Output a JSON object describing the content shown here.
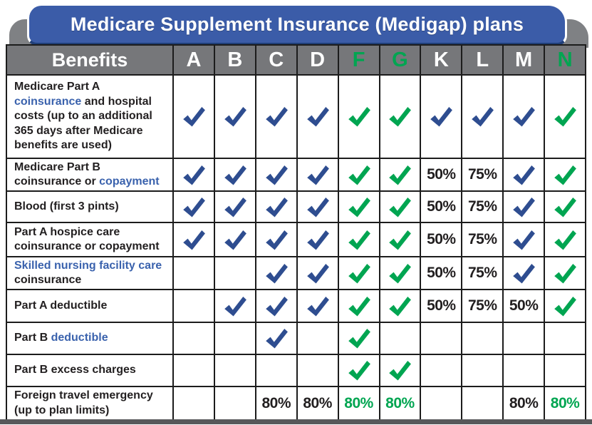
{
  "banner": {
    "title": "Medicare Supplement Insurance (Medigap) plans"
  },
  "colors": {
    "banner_blue": "#3b5ca8",
    "header_gray": "#76777a",
    "tab_gray": "#7f8184",
    "check_blue": "#2e4d90",
    "check_green": "#00a551",
    "label_blue": "#3a62ad",
    "text_black": "#221f20"
  },
  "table": {
    "benefits_header": "Benefits",
    "plan_columns": [
      {
        "label": "A",
        "style": "white"
      },
      {
        "label": "B",
        "style": "white"
      },
      {
        "label": "C",
        "style": "white"
      },
      {
        "label": "D",
        "style": "white"
      },
      {
        "label": "F",
        "style": "green"
      },
      {
        "label": "G",
        "style": "green"
      },
      {
        "label": "K",
        "style": "white"
      },
      {
        "label": "L",
        "style": "white"
      },
      {
        "label": "M",
        "style": "white"
      },
      {
        "label": "N",
        "style": "green"
      }
    ],
    "rows": [
      {
        "label_segments": [
          {
            "text": "Medicare Part A ",
            "color": "black"
          },
          {
            "text": "coinsurance",
            "color": "blue"
          },
          {
            "text": " and hospital costs (up to an additional 365 days after Medicare benefits are used)",
            "color": "black"
          }
        ],
        "cells": [
          {
            "check": "blue"
          },
          {
            "check": "blue"
          },
          {
            "check": "blue"
          },
          {
            "check": "blue"
          },
          {
            "check": "green"
          },
          {
            "check": "green"
          },
          {
            "check": "blue"
          },
          {
            "check": "blue"
          },
          {
            "check": "blue"
          },
          {
            "check": "green"
          }
        ]
      },
      {
        "label_segments": [
          {
            "text": "Medicare Part B coinsurance or ",
            "color": "black"
          },
          {
            "text": "copayment",
            "color": "blue"
          }
        ],
        "cells": [
          {
            "check": "blue"
          },
          {
            "check": "blue"
          },
          {
            "check": "blue"
          },
          {
            "check": "blue"
          },
          {
            "check": "green"
          },
          {
            "check": "green"
          },
          {
            "text": "50%",
            "color": "black"
          },
          {
            "text": "75%",
            "color": "black"
          },
          {
            "check": "blue"
          },
          {
            "check": "green"
          }
        ]
      },
      {
        "label_segments": [
          {
            "text": "Blood (first 3 pints)",
            "color": "black"
          }
        ],
        "cells": [
          {
            "check": "blue"
          },
          {
            "check": "blue"
          },
          {
            "check": "blue"
          },
          {
            "check": "blue"
          },
          {
            "check": "green"
          },
          {
            "check": "green"
          },
          {
            "text": "50%",
            "color": "black"
          },
          {
            "text": "75%",
            "color": "black"
          },
          {
            "check": "blue"
          },
          {
            "check": "green"
          }
        ]
      },
      {
        "label_segments": [
          {
            "text": "Part A hospice care coinsurance or copayment",
            "color": "black"
          }
        ],
        "cells": [
          {
            "check": "blue"
          },
          {
            "check": "blue"
          },
          {
            "check": "blue"
          },
          {
            "check": "blue"
          },
          {
            "check": "green"
          },
          {
            "check": "green"
          },
          {
            "text": "50%",
            "color": "black"
          },
          {
            "text": "75%",
            "color": "black"
          },
          {
            "check": "blue"
          },
          {
            "check": "green"
          }
        ]
      },
      {
        "label_segments": [
          {
            "text": "Skilled nursing facility care",
            "color": "blue"
          },
          {
            "text": " coinsurance",
            "color": "black"
          }
        ],
        "cells": [
          null,
          null,
          {
            "check": "blue"
          },
          {
            "check": "blue"
          },
          {
            "check": "green"
          },
          {
            "check": "green"
          },
          {
            "text": "50%",
            "color": "black"
          },
          {
            "text": "75%",
            "color": "black"
          },
          {
            "check": "blue"
          },
          {
            "check": "green"
          }
        ]
      },
      {
        "label_segments": [
          {
            "text": "Part A deductible",
            "color": "black"
          }
        ],
        "cells": [
          null,
          {
            "check": "blue"
          },
          {
            "check": "blue"
          },
          {
            "check": "blue"
          },
          {
            "check": "green"
          },
          {
            "check": "green"
          },
          {
            "text": "50%",
            "color": "black"
          },
          {
            "text": "75%",
            "color": "black"
          },
          {
            "text": "50%",
            "color": "black"
          },
          {
            "check": "green"
          }
        ]
      },
      {
        "label_segments": [
          {
            "text": "Part B ",
            "color": "black"
          },
          {
            "text": "deductible",
            "color": "blue"
          }
        ],
        "cells": [
          null,
          null,
          {
            "check": "blue"
          },
          null,
          {
            "check": "green"
          },
          null,
          null,
          null,
          null,
          null
        ]
      },
      {
        "label_segments": [
          {
            "text": "Part B excess charges",
            "color": "black"
          }
        ],
        "cells": [
          null,
          null,
          null,
          null,
          {
            "check": "green"
          },
          {
            "check": "green"
          },
          null,
          null,
          null,
          null
        ]
      },
      {
        "label_segments": [
          {
            "text": "Foreign travel emergency (up to plan limits)",
            "color": "black"
          }
        ],
        "cells": [
          null,
          null,
          {
            "text": "80%",
            "color": "black"
          },
          {
            "text": "80%",
            "color": "black"
          },
          {
            "text": "80%",
            "color": "green"
          },
          {
            "text": "80%",
            "color": "green"
          },
          null,
          null,
          {
            "text": "80%",
            "color": "black"
          },
          {
            "text": "80%",
            "color": "green"
          }
        ]
      }
    ]
  }
}
